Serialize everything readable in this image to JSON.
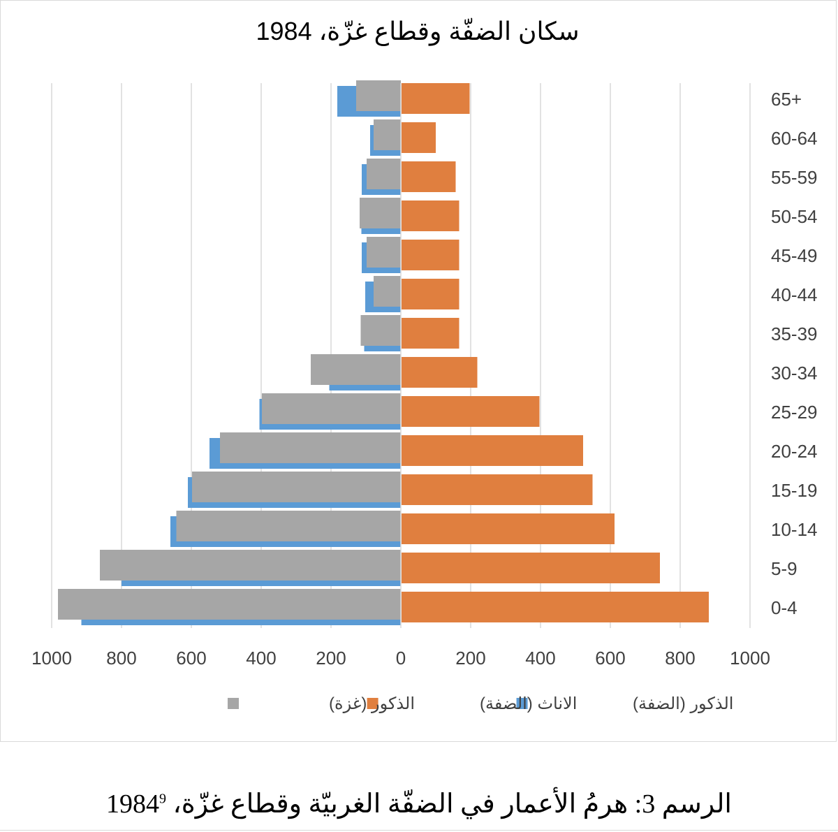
{
  "chart_data": {
    "type": "bar",
    "orientation": "horizontal-population-pyramid",
    "title": "سكان الضفّة وقطاع غزّة، 1984",
    "categories": [
      "0-4",
      "5-9",
      "10-14",
      "15-19",
      "20-24",
      "25-29",
      "30-34",
      "35-39",
      "40-44",
      "45-49",
      "50-54",
      "55-59",
      "60-64",
      "65+"
    ],
    "series": [
      {
        "name": "الذكور (الضفة)",
        "color": "#5b9bd5",
        "side": "left",
        "values": [
          915,
          800,
          660,
          610,
          548,
          405,
          205,
          105,
          102,
          112,
          113,
          112,
          88,
          182
        ]
      },
      {
        "name": "الاناث (الضفة)",
        "color": "#e07f3f",
        "side": "right",
        "values": [
          880,
          740,
          610,
          547,
          520,
          395,
          217,
          165,
          165,
          165,
          165,
          155,
          98,
          195
        ]
      },
      {
        "name": "الذكور (غزة)",
        "color": "#a6a6a6",
        "side": "left",
        "values": [
          982,
          862,
          643,
          598,
          518,
          398,
          258,
          115,
          78,
          98,
          118,
          98,
          78,
          128
        ]
      }
    ],
    "x_ticks": [
      "1000",
      "800",
      "600",
      "400",
      "200",
      "0",
      "200",
      "400",
      "600",
      "800",
      "1000"
    ],
    "xlim": [
      -1000,
      1000
    ],
    "legend_position": "bottom",
    "grid": "vertical"
  },
  "caption": {
    "text": "الرسم 3: هرمُ الأعمار في الضفّة الغربيّة وقطاع غزّة، 1984",
    "footnote": "9"
  }
}
